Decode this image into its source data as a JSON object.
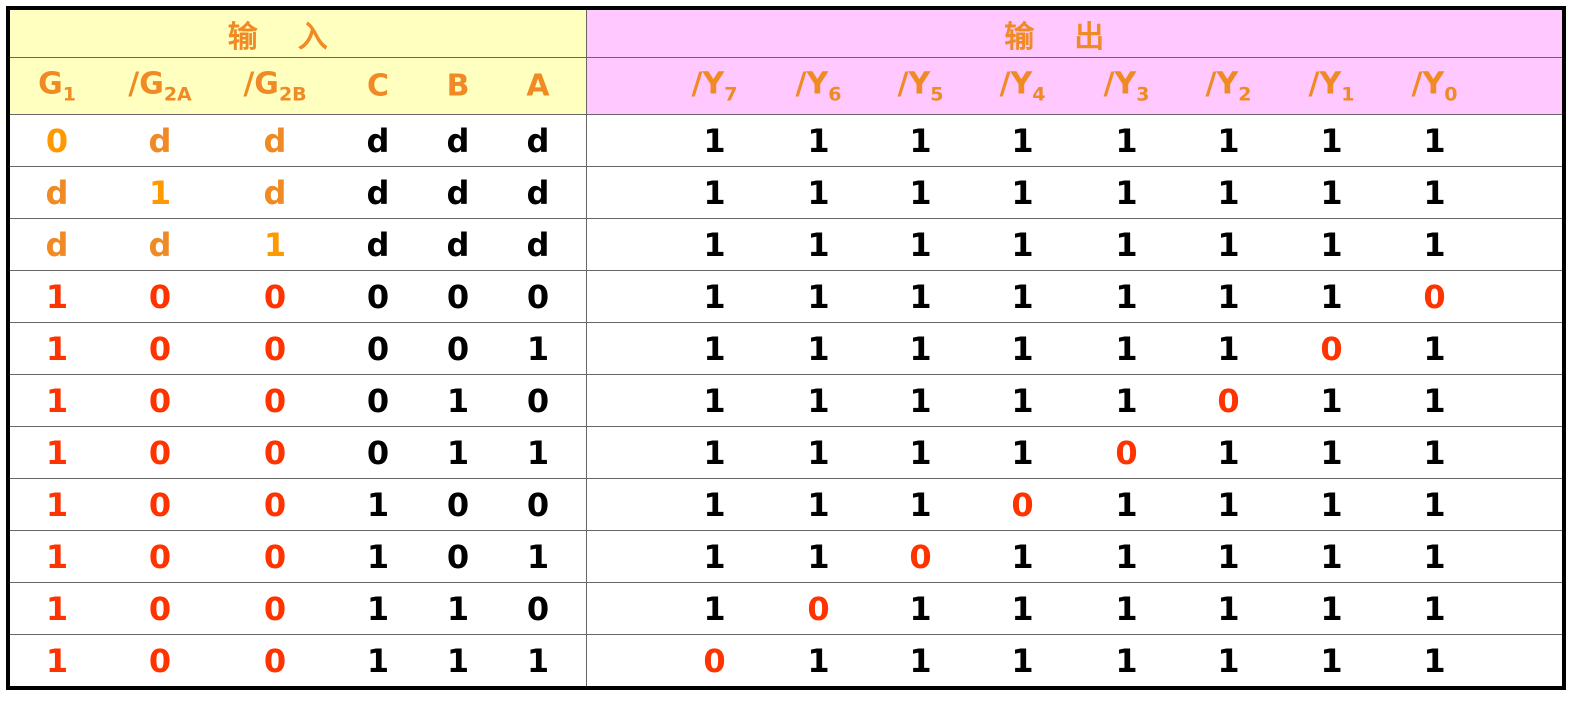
{
  "groups": {
    "inputs": "输入",
    "outputs": "输出"
  },
  "input_headers": [
    {
      "base": "G",
      "sub": "1"
    },
    {
      "base": "/G",
      "sub": "2A"
    },
    {
      "base": "/G",
      "sub": "2B"
    },
    {
      "base": "C",
      "sub": ""
    },
    {
      "base": "B",
      "sub": ""
    },
    {
      "base": "A",
      "sub": ""
    }
  ],
  "output_headers": [
    {
      "base": "/Y",
      "sub": "7"
    },
    {
      "base": "/Y",
      "sub": "6"
    },
    {
      "base": "/Y",
      "sub": "5"
    },
    {
      "base": "/Y",
      "sub": "4"
    },
    {
      "base": "/Y",
      "sub": "3"
    },
    {
      "base": "/Y",
      "sub": "2"
    },
    {
      "base": "/Y",
      "sub": "1"
    },
    {
      "base": "/Y",
      "sub": "0"
    }
  ],
  "colors": {
    "input_bg": "#ffffc0",
    "output_bg": "#ffc8ff",
    "orange": "#f08a24",
    "gold": "#ff9900",
    "red": "#ff3300",
    "black": "#000000"
  },
  "rows": [
    {
      "in": [
        "0",
        "d",
        "d",
        "d",
        "d",
        "d"
      ],
      "in_colors": [
        "gold",
        "orange",
        "orange",
        "black",
        "black",
        "black"
      ],
      "out": [
        "1",
        "1",
        "1",
        "1",
        "1",
        "1",
        "1",
        "1"
      ],
      "active": -1
    },
    {
      "in": [
        "d",
        "1",
        "d",
        "d",
        "d",
        "d"
      ],
      "in_colors": [
        "orange",
        "gold",
        "orange",
        "black",
        "black",
        "black"
      ],
      "out": [
        "1",
        "1",
        "1",
        "1",
        "1",
        "1",
        "1",
        "1"
      ],
      "active": -1
    },
    {
      "in": [
        "d",
        "d",
        "1",
        "d",
        "d",
        "d"
      ],
      "in_colors": [
        "orange",
        "orange",
        "gold",
        "black",
        "black",
        "black"
      ],
      "out": [
        "1",
        "1",
        "1",
        "1",
        "1",
        "1",
        "1",
        "1"
      ],
      "active": -1
    },
    {
      "in": [
        "1",
        "0",
        "0",
        "0",
        "0",
        "0"
      ],
      "in_colors": [
        "red",
        "red",
        "red",
        "black",
        "black",
        "black"
      ],
      "out": [
        "1",
        "1",
        "1",
        "1",
        "1",
        "1",
        "1",
        "0"
      ],
      "active": 7
    },
    {
      "in": [
        "1",
        "0",
        "0",
        "0",
        "0",
        "1"
      ],
      "in_colors": [
        "red",
        "red",
        "red",
        "black",
        "black",
        "black"
      ],
      "out": [
        "1",
        "1",
        "1",
        "1",
        "1",
        "1",
        "0",
        "1"
      ],
      "active": 6
    },
    {
      "in": [
        "1",
        "0",
        "0",
        "0",
        "1",
        "0"
      ],
      "in_colors": [
        "red",
        "red",
        "red",
        "black",
        "black",
        "black"
      ],
      "out": [
        "1",
        "1",
        "1",
        "1",
        "1",
        "0",
        "1",
        "1"
      ],
      "active": 5
    },
    {
      "in": [
        "1",
        "0",
        "0",
        "0",
        "1",
        "1"
      ],
      "in_colors": [
        "red",
        "red",
        "red",
        "black",
        "black",
        "black"
      ],
      "out": [
        "1",
        "1",
        "1",
        "1",
        "0",
        "1",
        "1",
        "1"
      ],
      "active": 4
    },
    {
      "in": [
        "1",
        "0",
        "0",
        "1",
        "0",
        "0"
      ],
      "in_colors": [
        "red",
        "red",
        "red",
        "black",
        "black",
        "black"
      ],
      "out": [
        "1",
        "1",
        "1",
        "0",
        "1",
        "1",
        "1",
        "1"
      ],
      "active": 3
    },
    {
      "in": [
        "1",
        "0",
        "0",
        "1",
        "0",
        "1"
      ],
      "in_colors": [
        "red",
        "red",
        "red",
        "black",
        "black",
        "black"
      ],
      "out": [
        "1",
        "1",
        "0",
        "1",
        "1",
        "1",
        "1",
        "1"
      ],
      "active": 2
    },
    {
      "in": [
        "1",
        "0",
        "0",
        "1",
        "1",
        "0"
      ],
      "in_colors": [
        "red",
        "red",
        "red",
        "black",
        "black",
        "black"
      ],
      "out": [
        "1",
        "0",
        "1",
        "1",
        "1",
        "1",
        "1",
        "1"
      ],
      "active": 1
    },
    {
      "in": [
        "1",
        "0",
        "0",
        "1",
        "1",
        "1"
      ],
      "in_colors": [
        "red",
        "red",
        "red",
        "black",
        "black",
        "black"
      ],
      "out": [
        "0",
        "1",
        "1",
        "1",
        "1",
        "1",
        "1",
        "1"
      ],
      "active": 0
    }
  ]
}
